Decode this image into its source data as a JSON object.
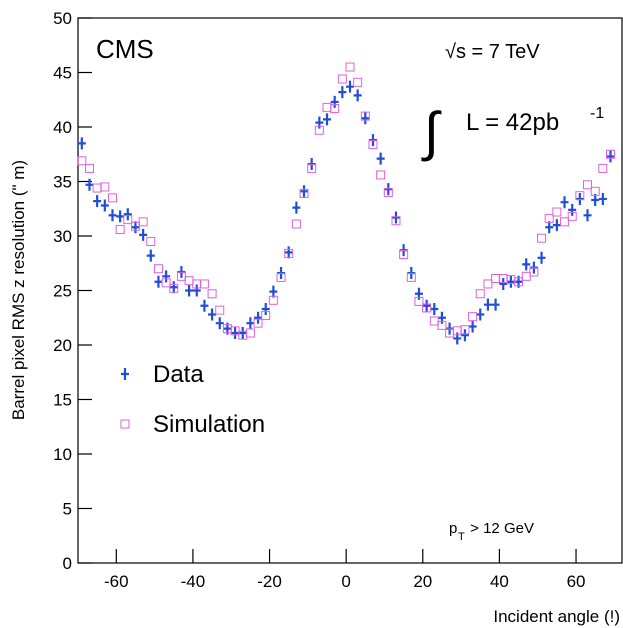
{
  "chart_data": {
    "type": "scatter",
    "x_label": "Incident angle (!)",
    "y_label": "Barrel pixel RMS z resolution (\" m)",
    "annotations": {
      "experiment": "CMS",
      "energy": "√s = 7 TeV",
      "lumi": {
        "symbol": "∫",
        "text": "L = 42pb",
        "sup": "-1"
      },
      "cut": {
        "text": "p",
        "sub": "T",
        "rest": " > 12 GeV"
      }
    },
    "x": [
      -69,
      -67,
      -65,
      -63,
      -61,
      -59,
      -57,
      -55,
      -53,
      -51,
      -49,
      -47,
      -45,
      -43,
      -41,
      -39,
      -37,
      -35,
      -33,
      -31,
      -29,
      -27,
      -25,
      -23,
      -21,
      -19,
      -17,
      -15,
      -13,
      -11,
      -9,
      -7,
      -5,
      -3,
      -1,
      1,
      3,
      5,
      7,
      9,
      11,
      13,
      15,
      17,
      19,
      21,
      23,
      25,
      27,
      29,
      31,
      33,
      35,
      37,
      39,
      41,
      43,
      45,
      47,
      49,
      51,
      53,
      55,
      57,
      59,
      61,
      63,
      65,
      67,
      69
    ],
    "series": [
      {
        "name": "Data",
        "color": "#1f4fd8",
        "marker": "cross",
        "values": [
          38.5,
          34.7,
          33.2,
          32.8,
          31.9,
          31.8,
          32.0,
          30.8,
          30.1,
          28.2,
          25.8,
          26.3,
          25.3,
          26.7,
          25.0,
          25.0,
          23.6,
          22.8,
          22.0,
          21.5,
          21.1,
          21.1,
          22.0,
          22.5,
          23.3,
          24.9,
          26.6,
          28.5,
          32.6,
          34.1,
          36.6,
          40.4,
          40.7,
          42.3,
          43.2,
          43.7,
          42.9,
          40.8,
          38.8,
          37.1,
          34.3,
          31.7,
          28.7,
          26.6,
          24.7,
          23.6,
          23.3,
          22.5,
          21.5,
          20.6,
          20.9,
          21.7,
          22.8,
          23.7,
          23.7,
          25.6,
          25.8,
          25.8,
          27.4,
          27.1,
          28.0,
          30.8,
          31.0,
          33.1,
          32.4,
          33.4,
          31.9,
          33.3,
          33.4,
          37.3
        ]
      },
      {
        "name": "Simulation",
        "color": "#e060e0",
        "marker": "square",
        "values": [
          36.9,
          36.2,
          34.4,
          34.5,
          33.5,
          30.6,
          31.5,
          30.9,
          31.3,
          29.5,
          27.0,
          25.7,
          25.2,
          26.3,
          25.9,
          25.6,
          25.6,
          24.7,
          23.2,
          21.5,
          21.3,
          20.9,
          21.1,
          22.0,
          22.7,
          24.1,
          26.2,
          28.4,
          31.1,
          33.9,
          36.2,
          39.7,
          41.8,
          41.7,
          44.4,
          45.5,
          44.1,
          41.0,
          38.4,
          35.6,
          34.0,
          31.4,
          28.3,
          26.2,
          24.0,
          23.4,
          22.2,
          21.8,
          21.1,
          21.3,
          21.4,
          22.6,
          24.7,
          25.6,
          26.1,
          26.1,
          26.0,
          25.8,
          26.3,
          26.7,
          29.8,
          31.6,
          32.2,
          31.3,
          31.8,
          33.7,
          34.7,
          34.1,
          36.2,
          37.5
        ]
      }
    ],
    "xlim": [
      -70,
      72
    ],
    "xticks": [
      -60,
      -40,
      -20,
      0,
      20,
      40,
      60
    ],
    "ylim": [
      0,
      50
    ],
    "yticks": [
      0,
      5,
      10,
      15,
      20,
      25,
      30,
      35,
      40,
      45,
      50
    ],
    "grid": false
  }
}
